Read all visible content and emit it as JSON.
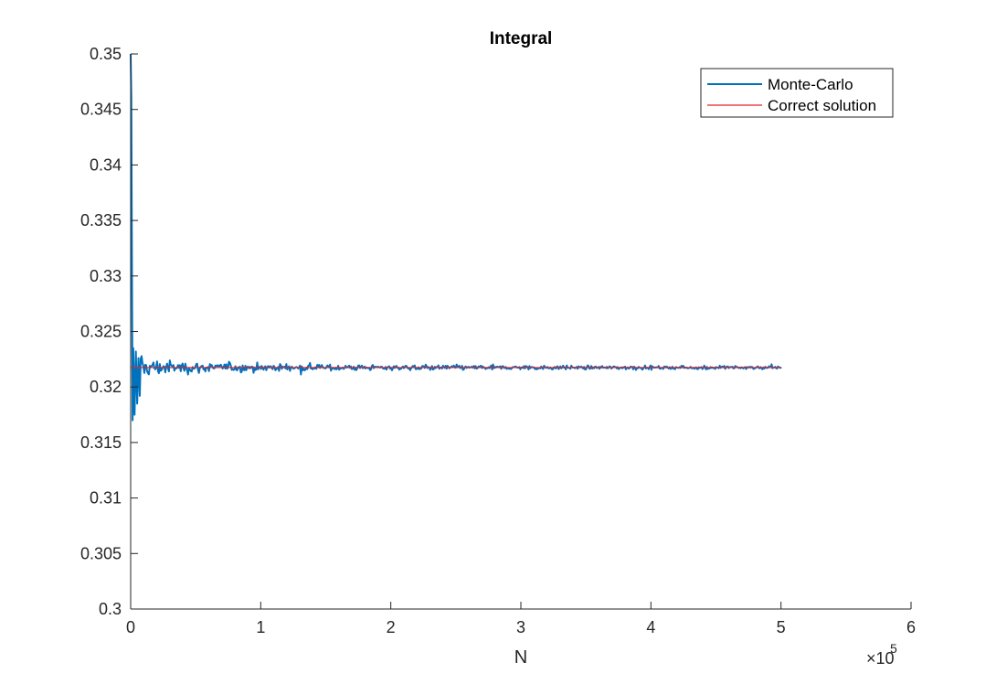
{
  "chart_data": {
    "type": "line",
    "title": "Integral",
    "xlabel": "N",
    "ylabel": "",
    "xlim": [
      0,
      600000
    ],
    "ylim": [
      0.3,
      0.35
    ],
    "x_ticks": [
      0,
      100000,
      200000,
      300000,
      400000,
      500000,
      600000
    ],
    "x_tick_labels": [
      "0",
      "1",
      "2",
      "3",
      "4",
      "5",
      "6"
    ],
    "x_exponent_label": "×10",
    "x_exponent_power": "5",
    "y_ticks": [
      0.3,
      0.305,
      0.31,
      0.315,
      0.32,
      0.325,
      0.33,
      0.335,
      0.34,
      0.345,
      0.35
    ],
    "y_tick_labels": [
      "0.3",
      "0.305",
      "0.31",
      "0.315",
      "0.32",
      "0.325",
      "0.33",
      "0.335",
      "0.34",
      "0.345",
      "0.35"
    ],
    "grid": false,
    "legend_position": "top-right",
    "series": [
      {
        "name": "Monte-Carlo",
        "color": "#0072BD",
        "x_range": [
          1,
          500000
        ],
        "converges_to": 0.32175,
        "initial_values": [
          [
            1,
            0.35
          ],
          [
            500,
            0.346
          ],
          [
            1000,
            0.3305
          ],
          [
            1500,
            0.317
          ],
          [
            2000,
            0.3235
          ],
          [
            3000,
            0.3175
          ],
          [
            4000,
            0.3232
          ],
          [
            5000,
            0.3185
          ],
          [
            6000,
            0.3226
          ],
          [
            7000,
            0.3192
          ]
        ]
      },
      {
        "name": "Correct solution",
        "color": "#D95319",
        "x_range": [
          0,
          500000
        ],
        "value": 0.32175
      }
    ]
  }
}
